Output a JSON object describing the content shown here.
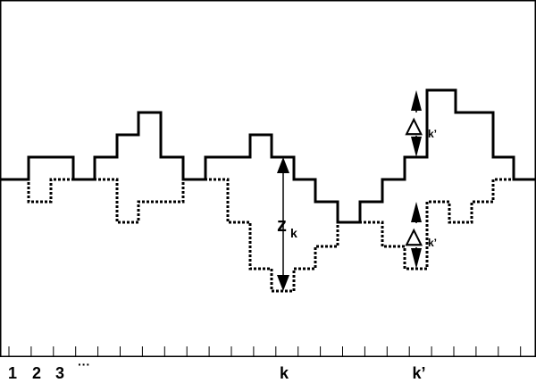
{
  "diagram": {
    "axis_labels": {
      "one": "1",
      "two": "2",
      "three": "3",
      "ellipsis": "···",
      "k": "k",
      "kprime": "k’"
    },
    "annotations": {
      "z_base": "z",
      "z_sub": "k",
      "delta_symbol": "△",
      "delta_sub": "k’"
    },
    "tick_count": 24
  }
}
